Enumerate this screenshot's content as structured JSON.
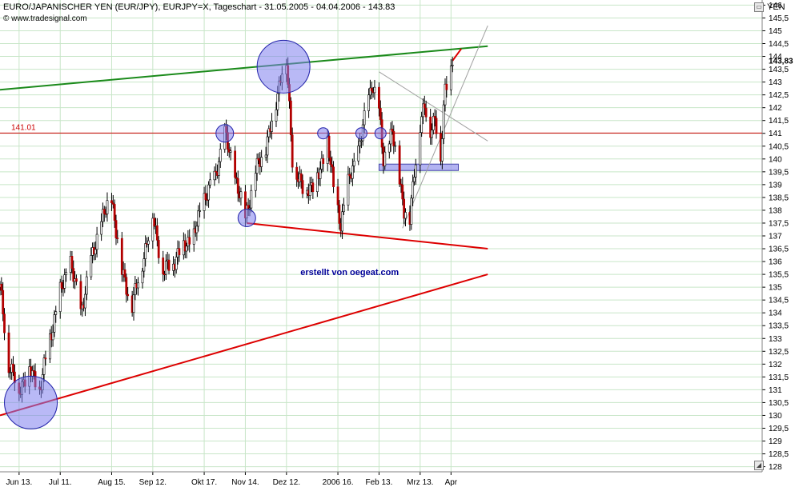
{
  "header": {
    "title": "EURO/JAPANISCHER YEN (EUR/JPY), EURJPY=X, Tageschart - 31.05.2005 - 04.04.2006 - 143.83",
    "source": "© www.tradesignal.com",
    "axis_unit": "YEN"
  },
  "chart_data": {
    "type": "candlestick",
    "title": "EURO/JAPANISCHER YEN (EUR/JPY), EURJPY=X, Tageschart - 31.05.2005 - 04.04.2006 - 143.83",
    "ylabel": "YEN",
    "ylim": [
      127.8,
      146.2
    ],
    "yticks": [
      "128",
      "128,5",
      "129",
      "129,5",
      "130",
      "130,5",
      "131",
      "131,5",
      "132",
      "132,5",
      "133",
      "133,5",
      "134",
      "134,5",
      "135",
      "135,5",
      "136",
      "136,5",
      "137",
      "137,5",
      "138",
      "138,5",
      "139",
      "139,5",
      "140",
      "140,5",
      "141",
      "141,5",
      "142",
      "142,5",
      "143",
      "143,5",
      "144",
      "144,5",
      "145",
      "145,5",
      "146"
    ],
    "last_value_label": "143,83",
    "xticks": [
      {
        "date": "2005-06-13",
        "label": "Jun  13."
      },
      {
        "date": "2005-07-11",
        "label": "Jul  11."
      },
      {
        "date": "2005-08-15",
        "label": "Aug  15."
      },
      {
        "date": "2005-09-12",
        "label": "Sep  12."
      },
      {
        "date": "2005-10-17",
        "label": "Okt  17."
      },
      {
        "date": "2005-11-14",
        "label": "Nov  14."
      },
      {
        "date": "2005-12-12",
        "label": "Dez  12."
      },
      {
        "date": "2006-01-16",
        "label": "2006  16."
      },
      {
        "date": "2006-02-13",
        "label": "Feb  13."
      },
      {
        "date": "2006-03-13",
        "label": "Mrz  13."
      },
      {
        "date": "2006-04-03",
        "label": "Apr"
      }
    ],
    "anchors": [
      [
        "2005-05-31",
        135.0
      ],
      [
        "2005-06-06",
        132.0
      ],
      [
        "2005-06-13",
        131.0
      ],
      [
        "2005-06-20",
        131.8
      ],
      [
        "2005-06-27",
        131.0
      ],
      [
        "2005-07-04",
        133.0
      ],
      [
        "2005-07-11",
        134.8
      ],
      [
        "2005-07-18",
        136.0
      ],
      [
        "2005-07-25",
        134.0
      ],
      [
        "2005-08-01",
        136.0
      ],
      [
        "2005-08-08",
        137.6
      ],
      [
        "2005-08-15",
        138.5
      ],
      [
        "2005-08-22",
        135.6
      ],
      [
        "2005-08-29",
        134.3
      ],
      [
        "2005-09-05",
        136.0
      ],
      [
        "2005-09-12",
        137.8
      ],
      [
        "2005-09-19",
        135.6
      ],
      [
        "2005-09-26",
        136.0
      ],
      [
        "2005-10-03",
        136.6
      ],
      [
        "2005-10-10",
        137.0
      ],
      [
        "2005-10-17",
        138.5
      ],
      [
        "2005-10-24",
        139.2
      ],
      [
        "2005-10-31",
        141.0
      ],
      [
        "2005-11-07",
        139.3
      ],
      [
        "2005-11-14",
        137.7
      ],
      [
        "2005-11-21",
        139.5
      ],
      [
        "2005-11-28",
        140.5
      ],
      [
        "2005-12-05",
        142.2
      ],
      [
        "2005-12-09",
        143.6
      ],
      [
        "2005-12-12",
        143.8
      ],
      [
        "2005-12-16",
        140.0
      ],
      [
        "2005-12-23",
        138.8
      ],
      [
        "2005-12-30",
        139.0
      ],
      [
        "2006-01-04",
        139.5
      ],
      [
        "2006-01-09",
        140.8
      ],
      [
        "2006-01-13",
        138.8
      ],
      [
        "2006-01-18",
        137.5
      ],
      [
        "2006-01-24",
        139.3
      ],
      [
        "2006-01-30",
        140.3
      ],
      [
        "2006-02-03",
        141.5
      ],
      [
        "2006-02-08",
        143.0
      ],
      [
        "2006-02-13",
        141.8
      ],
      [
        "2006-02-16",
        140.0
      ],
      [
        "2006-02-22",
        141.0
      ],
      [
        "2006-02-27",
        139.3
      ],
      [
        "2006-03-02",
        138.0
      ],
      [
        "2006-03-06",
        137.6
      ],
      [
        "2006-03-09",
        139.6
      ],
      [
        "2006-03-13",
        141.3
      ],
      [
        "2006-03-16",
        142.0
      ],
      [
        "2006-03-20",
        141.2
      ],
      [
        "2006-03-23",
        141.6
      ],
      [
        "2006-03-27",
        140.0
      ],
      [
        "2006-03-30",
        142.9
      ],
      [
        "2006-04-04",
        143.83
      ]
    ],
    "horizontal_line": {
      "value": 141.01,
      "label": "141.01",
      "color": "#cc0000"
    },
    "trendlines": [
      {
        "from": [
          "2005-05-31",
          142.7
        ],
        "to": [
          "2006-04-28",
          144.4
        ],
        "color": "#1a8a1a"
      },
      {
        "from": [
          "2005-05-31",
          130.0
        ],
        "to": [
          "2006-04-28",
          135.5
        ],
        "color": "#dd0000"
      },
      {
        "from": [
          "2005-11-15",
          137.5
        ],
        "to": [
          "2006-04-28",
          136.5
        ],
        "color": "#dd0000"
      },
      {
        "from": [
          "2006-04-04",
          143.83
        ],
        "to": [
          "2006-04-10",
          144.3
        ],
        "color": "#dd0000"
      },
      {
        "from": [
          "2006-02-13",
          143.4
        ],
        "to": [
          "2006-04-28",
          140.7
        ],
        "color": "#a0a0a0"
      },
      {
        "from": [
          "2006-03-01",
          137.3
        ],
        "to": [
          "2006-04-28",
          145.2
        ],
        "color": "#a0a0a0"
      }
    ],
    "highlight_zone": {
      "from": "2006-02-13",
      "to": "2006-04-08",
      "low": 139.55,
      "high": 139.8,
      "color": "#9999ee"
    },
    "marker_circles": [
      {
        "date": "2005-06-21",
        "value": 130.5,
        "size": "large"
      },
      {
        "date": "2005-12-10",
        "value": 143.6,
        "size": "large"
      },
      {
        "date": "2005-10-31",
        "value": 141.0,
        "size": "small"
      },
      {
        "date": "2005-11-15",
        "value": 137.7,
        "size": "small"
      },
      {
        "date": "2006-01-06",
        "value": 141.0,
        "size": "tiny"
      },
      {
        "date": "2006-02-01",
        "value": 141.0,
        "size": "tiny"
      },
      {
        "date": "2006-02-14",
        "value": 141.0,
        "size": "tiny"
      }
    ],
    "annotation": {
      "text": "erstellt von oegeat.com",
      "date": "2006-01-24",
      "value": 135.6,
      "color": "#000099"
    },
    "colors": {
      "up": "#ffffff",
      "down": "#b20000",
      "wick": "#000000",
      "grid": "#c8e6c8",
      "frame": "#808080"
    }
  }
}
